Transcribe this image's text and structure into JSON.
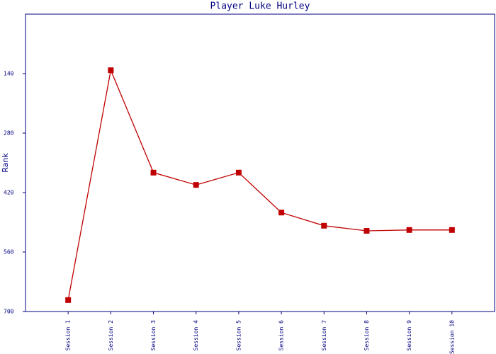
{
  "chart_data": {
    "type": "line",
    "title": "Player Luke Hurley",
    "y_label": "Rank",
    "categories": [
      "Session 1",
      "Session 2",
      "Session 3",
      "Session 4",
      "Session 5",
      "Session 6",
      "Session 7",
      "Session 8",
      "Session 9",
      "Session 10"
    ],
    "series": [
      {
        "name": "Rank",
        "color": "#c00000",
        "values": [
          673,
          132,
          373,
          402,
          373,
          467,
          498,
          510,
          508,
          508
        ]
      }
    ],
    "ylim": [
      0,
      700
    ],
    "yticks": [
      140,
      280,
      420,
      560,
      700
    ],
    "y_inverted": true,
    "axis_color": "#000080"
  }
}
